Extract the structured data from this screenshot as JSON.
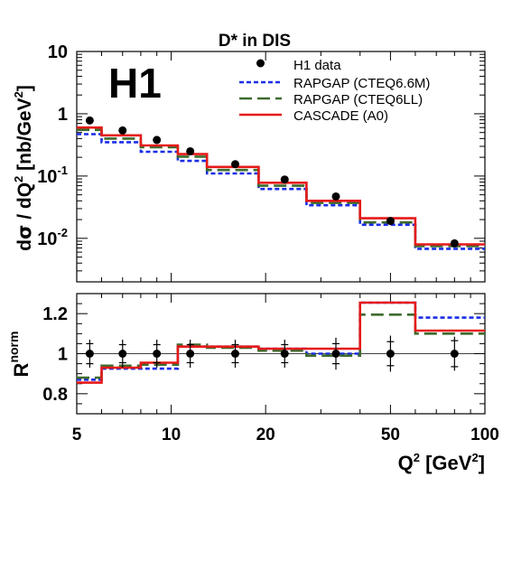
{
  "chart_data": {
    "type": "line",
    "title": "D* in DIS",
    "logo": "H1",
    "xlabel": {
      "base": "Q",
      "sup": "2",
      "unit_open": " [GeV",
      "unit_sup": "2",
      "unit_close": "]"
    },
    "x_scale": "log",
    "xlim": [
      5,
      100
    ],
    "xticks": [
      5,
      10,
      20,
      50,
      100
    ],
    "xtick_labels": [
      "5",
      "10",
      "20",
      "50",
      "100"
    ],
    "bin_edges": [
      5,
      6,
      8,
      10.5,
      13,
      19,
      27,
      40,
      60,
      100
    ],
    "top": {
      "ylabel": {
        "pre": "d",
        "sigma": "σ",
        "mid": " / dQ",
        "sup": "2",
        "post": " [nb/GeV",
        "sup2": "2",
        "close": "]"
      },
      "y_scale": "log",
      "ylim": [
        0.002,
        10
      ],
      "yticks": [
        {
          "value": 10,
          "base": "10",
          "exp": ""
        },
        {
          "value": 1,
          "base": "1",
          "exp": ""
        },
        {
          "value": 0.1,
          "base": "10",
          "exp": "-1"
        },
        {
          "value": 0.01,
          "base": "10",
          "exp": "-2"
        }
      ],
      "legend_position": "top-right",
      "data": {
        "name": "H1 data",
        "x": [
          5.5,
          7.0,
          9.0,
          11.5,
          16.0,
          23.0,
          33.5,
          50.0,
          80.0
        ],
        "y": [
          0.78,
          0.54,
          0.38,
          0.25,
          0.155,
          0.088,
          0.047,
          0.019,
          0.0083
        ]
      },
      "series": [
        {
          "name": "RAPGAP (CTEQ6.6M)",
          "color": "#1a2ee6",
          "dash": "5 3",
          "values": [
            0.47,
            0.35,
            0.245,
            0.175,
            0.11,
            0.062,
            0.034,
            0.0165,
            0.0068
          ]
        },
        {
          "name": "RAPGAP (CTEQ6LL)",
          "color": "#3d6b2e",
          "dash": "14 6",
          "values": [
            0.55,
            0.4,
            0.29,
            0.205,
            0.125,
            0.07,
            0.037,
            0.018,
            0.0075
          ]
        },
        {
          "name": "CASCADE (A0)",
          "color": "#e61a1a",
          "dash": "",
          "values": [
            0.6,
            0.45,
            0.31,
            0.225,
            0.14,
            0.078,
            0.04,
            0.021,
            0.008
          ]
        }
      ]
    },
    "bottom": {
      "ylabel": {
        "base": "R",
        "sup": "norm"
      },
      "y_scale": "linear",
      "ylim": [
        0.7,
        1.3
      ],
      "yticks": [
        0.8,
        1,
        1.2
      ],
      "ytick_labels": [
        "0.8",
        "1",
        "1.2"
      ],
      "reference_line": 1.0,
      "data": {
        "x": [
          5.5,
          7.0,
          9.0,
          11.5,
          16.0,
          23.0,
          33.5,
          50.0,
          80.0
        ],
        "y": [
          1.0,
          1.0,
          1.0,
          1.0,
          1.0,
          1.0,
          1.0,
          1.0,
          1.0
        ],
        "err_inner": [
          0.05,
          0.045,
          0.045,
          0.045,
          0.045,
          0.045,
          0.05,
          0.06,
          0.065
        ],
        "err_outer": [
          0.07,
          0.07,
          0.07,
          0.07,
          0.07,
          0.07,
          0.08,
          0.09,
          0.085
        ]
      },
      "series": [
        {
          "name": "RAPGAP (CTEQ6.6M)",
          "color": "#1a2ee6",
          "dash": "5 3",
          "values": [
            0.87,
            0.925,
            0.925,
            1.035,
            1.035,
            1.025,
            1.0,
            1.255,
            1.18
          ]
        },
        {
          "name": "RAPGAP (CTEQ6LL)",
          "color": "#3d6b2e",
          "dash": "14 6",
          "values": [
            0.88,
            0.94,
            0.945,
            1.045,
            1.03,
            1.015,
            0.99,
            1.195,
            1.1
          ]
        },
        {
          "name": "CASCADE (A0)",
          "color": "#e61a1a",
          "dash": "",
          "values": [
            0.855,
            0.93,
            0.955,
            1.035,
            1.035,
            1.025,
            1.025,
            1.255,
            1.115
          ]
        }
      ]
    }
  }
}
